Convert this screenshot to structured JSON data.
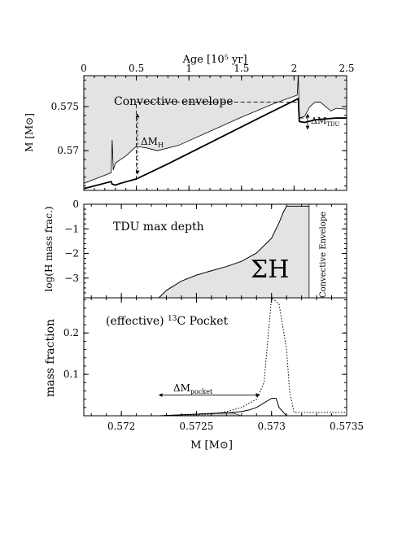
{
  "chart_data": [
    {
      "type": "line",
      "panel": "top",
      "top_axis": {
        "label": "Age [10⁵ yr]",
        "range": [
          0,
          2.5
        ],
        "ticks": [
          0,
          0.5,
          1,
          1.5,
          2,
          2.5
        ],
        "tick_labels": [
          "0",
          "0.5",
          "1",
          "1.5",
          "2",
          "2.5"
        ]
      },
      "y_axis": {
        "label": "M [M⊙]",
        "range": [
          0.5655,
          0.5785
        ],
        "ticks": [
          0.57,
          0.575
        ],
        "tick_labels": [
          "0.57",
          "0.575"
        ]
      },
      "series": [
        {
          "role": "convective envelope boundary (upper curve, shaded region above)",
          "x": [
            0,
            0.26,
            0.27,
            0.28,
            0.3,
            0.4,
            0.5,
            0.6,
            0.7,
            0.9,
            1.2,
            1.5,
            1.8,
            2.03,
            2.04,
            2.05,
            2.1,
            2.15,
            2.2,
            2.25,
            2.3,
            2.35,
            2.4,
            2.5
          ],
          "y": [
            0.5663,
            0.5675,
            0.5712,
            0.5678,
            0.5686,
            0.5694,
            0.5705,
            0.5703,
            0.57,
            0.5706,
            0.5722,
            0.5738,
            0.5753,
            0.5763,
            0.5787,
            0.5737,
            0.5739,
            0.575,
            0.5755,
            0.5755,
            0.575,
            0.5745,
            0.5748,
            0.5747
          ]
        },
        {
          "role": "H-burning shell (lower curve)",
          "x": [
            0,
            0.26,
            0.27,
            0.3,
            0.35,
            0.5,
            0.8,
            1.1,
            1.4,
            1.7,
            2.04,
            2.05,
            2.1,
            2.2,
            2.3,
            2.4,
            2.5
          ],
          "y": [
            0.5657,
            0.5665,
            0.5662,
            0.5661,
            0.5663,
            0.5668,
            0.5685,
            0.5703,
            0.5721,
            0.5739,
            0.5759,
            0.5733,
            0.5732,
            0.5735,
            0.5736,
            0.5737,
            0.5737
          ]
        }
      ],
      "reference_lines": [
        {
          "style": "dashed",
          "orientation": "horizontal",
          "y": 0.5755,
          "x_range": [
            0.5,
            2.05
          ]
        },
        {
          "style": "dashed",
          "orientation": "horizontal",
          "y": 0.5737,
          "x_range": [
            2.05,
            2.12
          ]
        },
        {
          "style": "dashed",
          "orientation": "vertical",
          "x": 0.5,
          "y_range": [
            0.5667,
            0.5755
          ]
        }
      ],
      "annotations": {
        "envelope": "Convective envelope",
        "delta_mh": "ΔM",
        "delta_mh_sub": "H",
        "delta_mtdu": "ΔM",
        "delta_mtdu_sub": "TDU"
      }
    },
    {
      "type": "area",
      "panel": "middle",
      "y_axis": {
        "label": "log(H mass frac.)",
        "range": [
          -3.8,
          0
        ],
        "ticks": [
          -3,
          -2,
          -1,
          0
        ],
        "tick_labels": [
          "−3",
          "−2",
          "−1",
          "0"
        ]
      },
      "series": [
        {
          "role": "H abundance profile at max TDU depth (shaded area below)",
          "x": [
            0.57225,
            0.5723,
            0.5724,
            0.5725,
            0.5726,
            0.5727,
            0.5728,
            0.5729,
            0.573,
            0.57305,
            0.57308,
            0.5731,
            0.57325
          ],
          "y": [
            -3.8,
            -3.5,
            -3.12,
            -2.88,
            -2.7,
            -2.53,
            -2.32,
            -1.98,
            -1.38,
            -0.75,
            -0.3,
            -0.08,
            -0.08
          ]
        }
      ],
      "envelope_boundary_x": 0.57325,
      "annotations": {
        "title": "TDU max depth",
        "area_label": "ΣH",
        "envelope_label": "Convective Envelope"
      }
    },
    {
      "type": "line",
      "panel": "bottom",
      "x_axis": {
        "label": "M [M⊙]",
        "range": [
          0.57175,
          0.5735
        ],
        "ticks": [
          0.572,
          0.5725,
          0.573,
          0.5735
        ],
        "tick_labels": [
          "0.572",
          "0.5725",
          "0.573",
          "0.5735"
        ]
      },
      "y_axis": {
        "label": "mass fraction",
        "range": [
          0,
          0.285
        ],
        "ticks": [
          0.1,
          0.2
        ],
        "tick_labels": [
          "0.1",
          "0.2"
        ]
      },
      "series": [
        {
          "role": "13C (solid)",
          "x": [
            0.57225,
            0.5725,
            0.5727,
            0.5728,
            0.57285,
            0.5729,
            0.573,
            0.57303,
            0.57305,
            0.5731
          ],
          "y": [
            0,
            0.004,
            0.007,
            0.01,
            0.014,
            0.02,
            0.042,
            0.042,
            0.02,
            0
          ]
        },
        {
          "role": "14N (dotted)",
          "x": [
            0.57225,
            0.5725,
            0.5726,
            0.5727,
            0.5728,
            0.5729,
            0.57295,
            0.573,
            0.57305,
            0.5731,
            0.57312,
            0.57315,
            0.5732,
            0.5735
          ],
          "y": [
            0,
            0.002,
            0.004,
            0.01,
            0.02,
            0.04,
            0.08,
            0.285,
            0.27,
            0.16,
            0.06,
            0.008,
            0.008,
            0.008
          ]
        },
        {
          "role": "effective 13C pocket (shaded)",
          "x": [
            0.57225,
            0.5725,
            0.5726,
            0.5727,
            0.57275,
            0.5728
          ],
          "y": [
            0,
            0.004,
            0.006,
            0.008,
            0.006,
            0
          ]
        }
      ],
      "arrow": {
        "x_range": [
          0.57225,
          0.57292
        ],
        "y": 0.05
      },
      "annotations": {
        "title_prefix": "(effective) ",
        "title_sup": "13",
        "title_suffix": "C Pocket",
        "delta_pocket": "ΔM",
        "delta_pocket_sub": "pocket"
      }
    }
  ]
}
